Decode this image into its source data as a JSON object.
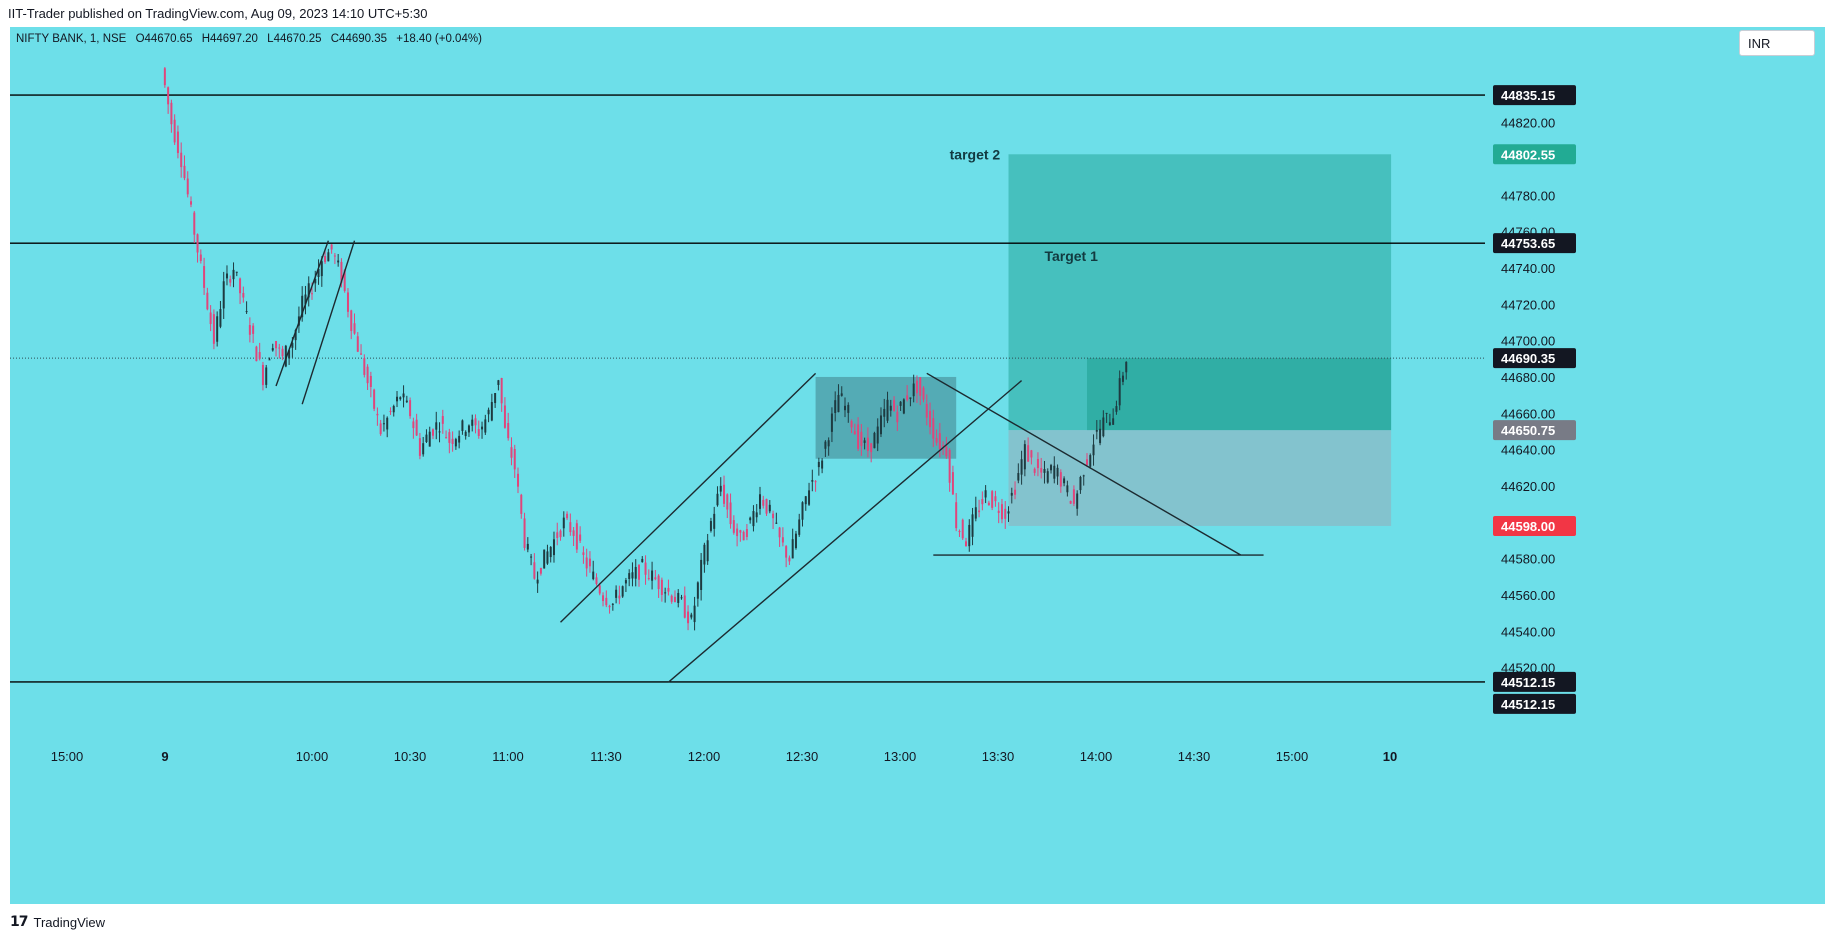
{
  "header": {
    "published_by": "IIT-Trader published on TradingView.com, Aug 09, 2023 14:10 UTC+5:30"
  },
  "symbol_info": {
    "name": "NIFTY BANK, 1, NSE",
    "open": "O44670.65",
    "high": "H44697.20",
    "low": "L44670.25",
    "close": "C44690.35",
    "change": "+18.40 (+0.04%)"
  },
  "currency": "INR",
  "footer": {
    "brand": "TradingView",
    "logo": "17"
  },
  "colors": {
    "background": "#6ddfe9",
    "bull_candle": "#1e3a40",
    "bear_candle": "#e0457b",
    "profit_zone": "#26a69a",
    "risk_zone": "#9aa7b3",
    "dark_box": "#3f7f8a",
    "line": "#1c2a30",
    "stop_label": "#f23645",
    "target_label": "#22ab94",
    "entry_label": "#787b86"
  },
  "chart_data": {
    "type": "candlestick",
    "symbol": "NIFTY BANK",
    "interval": "1",
    "exchange": "NSE",
    "ylim": [
      44500,
      44855
    ],
    "y_ticks": [
      44520,
      44540,
      44560,
      44580,
      44600,
      44620,
      44640,
      44660,
      44680,
      44700,
      44720,
      44740,
      44760,
      44780,
      44800,
      44820
    ],
    "y_tick_labels": [
      "44520.00",
      "44540.00",
      "44560.00",
      "44580.00",
      "44600.00",
      "44620.00",
      "44640.00",
      "44660.00",
      "44680.00",
      "44700.00",
      "44720.00",
      "44740.00",
      "44760.00",
      "44780.00",
      "44800.00",
      "44820.00"
    ],
    "x_ticks": [
      {
        "label": "15:00",
        "t": "Aug 08 15:00"
      },
      {
        "label": "9",
        "t": "Aug 09 09:15"
      },
      {
        "label": "10:00",
        "t": "Aug 09 10:00"
      },
      {
        "label": "10:30",
        "t": "Aug 09 10:30"
      },
      {
        "label": "11:00",
        "t": "Aug 09 11:00"
      },
      {
        "label": "11:30",
        "t": "Aug 09 11:30"
      },
      {
        "label": "12:00",
        "t": "Aug 09 12:00"
      },
      {
        "label": "12:30",
        "t": "Aug 09 12:30"
      },
      {
        "label": "13:00",
        "t": "Aug 09 13:00"
      },
      {
        "label": "13:30",
        "t": "Aug 09 13:30"
      },
      {
        "label": "14:00",
        "t": "Aug 09 14:00"
      },
      {
        "label": "14:30",
        "t": "Aug 09 14:30"
      },
      {
        "label": "15:00",
        "t": "Aug 09 15:00"
      },
      {
        "label": "10",
        "t": "Aug 10 09:15"
      }
    ],
    "price_path": [
      [
        "09:15",
        44850
      ],
      [
        "09:18",
        44820
      ],
      [
        "09:21",
        44800
      ],
      [
        "09:25",
        44760
      ],
      [
        "09:28",
        44730
      ],
      [
        "09:31",
        44700
      ],
      [
        "09:34",
        44730
      ],
      [
        "09:37",
        44740
      ],
      [
        "09:40",
        44720
      ],
      [
        "09:43",
        44700
      ],
      [
        "09:46",
        44680
      ],
      [
        "09:49",
        44700
      ],
      [
        "09:52",
        44690
      ],
      [
        "09:55",
        44700
      ],
      [
        "09:58",
        44720
      ],
      [
        "10:01",
        44730
      ],
      [
        "10:04",
        44745
      ],
      [
        "10:07",
        44750
      ],
      [
        "10:10",
        44735
      ],
      [
        "10:13",
        44710
      ],
      [
        "10:16",
        44690
      ],
      [
        "10:19",
        44670
      ],
      [
        "10:22",
        44650
      ],
      [
        "10:25",
        44660
      ],
      [
        "10:28",
        44670
      ],
      [
        "10:31",
        44660
      ],
      [
        "10:34",
        44640
      ],
      [
        "10:37",
        44650
      ],
      [
        "10:40",
        44655
      ],
      [
        "10:43",
        44645
      ],
      [
        "10:46",
        44650
      ],
      [
        "10:49",
        44655
      ],
      [
        "10:52",
        44650
      ],
      [
        "10:55",
        44660
      ],
      [
        "10:58",
        44680
      ],
      [
        "11:00",
        44650
      ],
      [
        "11:03",
        44630
      ],
      [
        "11:06",
        44590
      ],
      [
        "11:09",
        44570
      ],
      [
        "11:12",
        44580
      ],
      [
        "11:15",
        44590
      ],
      [
        "11:18",
        44600
      ],
      [
        "11:21",
        44595
      ],
      [
        "11:24",
        44580
      ],
      [
        "11:27",
        44570
      ],
      [
        "11:30",
        44560
      ],
      [
        "11:33",
        44555
      ],
      [
        "11:36",
        44565
      ],
      [
        "11:39",
        44570
      ],
      [
        "11:42",
        44575
      ],
      [
        "11:45",
        44570
      ],
      [
        "11:48",
        44565
      ],
      [
        "11:51",
        44560
      ],
      [
        "11:54",
        44555
      ],
      [
        "11:57",
        44545
      ],
      [
        "12:00",
        44575
      ],
      [
        "12:03",
        44600
      ],
      [
        "12:06",
        44620
      ],
      [
        "12:09",
        44600
      ],
      [
        "12:12",
        44590
      ],
      [
        "12:15",
        44600
      ],
      [
        "12:18",
        44615
      ],
      [
        "12:21",
        44605
      ],
      [
        "12:24",
        44590
      ],
      [
        "12:27",
        44580
      ],
      [
        "12:30",
        44600
      ],
      [
        "12:33",
        44620
      ],
      [
        "12:36",
        44630
      ],
      [
        "12:39",
        44650
      ],
      [
        "12:42",
        44670
      ],
      [
        "12:45",
        44660
      ],
      [
        "12:48",
        44645
      ],
      [
        "12:51",
        44640
      ],
      [
        "12:54",
        44650
      ],
      [
        "12:57",
        44665
      ],
      [
        "13:00",
        44660
      ],
      [
        "13:03",
        44670
      ],
      [
        "13:06",
        44675
      ],
      [
        "13:09",
        44660
      ],
      [
        "13:12",
        44645
      ],
      [
        "13:15",
        44640
      ],
      [
        "13:18",
        44600
      ],
      [
        "13:21",
        44590
      ],
      [
        "13:24",
        44605
      ],
      [
        "13:27",
        44615
      ],
      [
        "13:30",
        44610
      ],
      [
        "13:33",
        44605
      ],
      [
        "13:36",
        44620
      ],
      [
        "13:39",
        44640
      ],
      [
        "13:42",
        44630
      ],
      [
        "13:45",
        44625
      ],
      [
        "13:48",
        44630
      ],
      [
        "13:51",
        44620
      ],
      [
        "13:54",
        44610
      ],
      [
        "13:57",
        44630
      ],
      [
        "14:00",
        44645
      ],
      [
        "14:03",
        44655
      ],
      [
        "14:06",
        44660
      ],
      [
        "14:08",
        44675
      ],
      [
        "14:10",
        44690.35
      ]
    ],
    "horizontal_lines": [
      {
        "price": 44835.15,
        "label": "44835.15"
      },
      {
        "price": 44753.65,
        "label": "44753.65"
      },
      {
        "price": 44512.15,
        "label": "44512.15"
      }
    ],
    "last_price": 44690.35,
    "last_price_label": "44690.35",
    "position": {
      "entry": 44650.75,
      "entry_label": "44650.75",
      "target": 44802.55,
      "target_label": "44802.55",
      "stop": 44598.0,
      "stop_label": "44598.00",
      "start": "13:33",
      "end": "15:30"
    },
    "extra_price_label": "44512.15",
    "annotations": [
      {
        "text": "target 2",
        "t": "13:15",
        "price": 44802
      },
      {
        "text": "Target 1",
        "t": "13:44",
        "price": 44746
      }
    ]
  }
}
